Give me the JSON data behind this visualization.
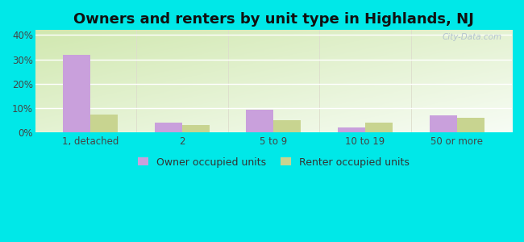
{
  "title": "Owners and renters by unit type in Highlands, NJ",
  "categories": [
    "1, detached",
    "2",
    "5 to 9",
    "10 to 19",
    "50 or more"
  ],
  "owner_values": [
    32.0,
    4.0,
    9.5,
    2.0,
    7.0
  ],
  "renter_values": [
    7.5,
    3.0,
    5.0,
    4.0,
    6.0
  ],
  "owner_color": "#c9a0dc",
  "renter_color": "#c8d490",
  "background_outer": "#00e8e8",
  "ylim": [
    0,
    42
  ],
  "yticks": [
    0,
    10,
    20,
    30,
    40
  ],
  "ytick_labels": [
    "0%",
    "10%",
    "20%",
    "30%",
    "40%"
  ],
  "legend_owner": "Owner occupied units",
  "legend_renter": "Renter occupied units",
  "bar_width": 0.3,
  "title_fontsize": 13,
  "watermark": "City-Data.com"
}
